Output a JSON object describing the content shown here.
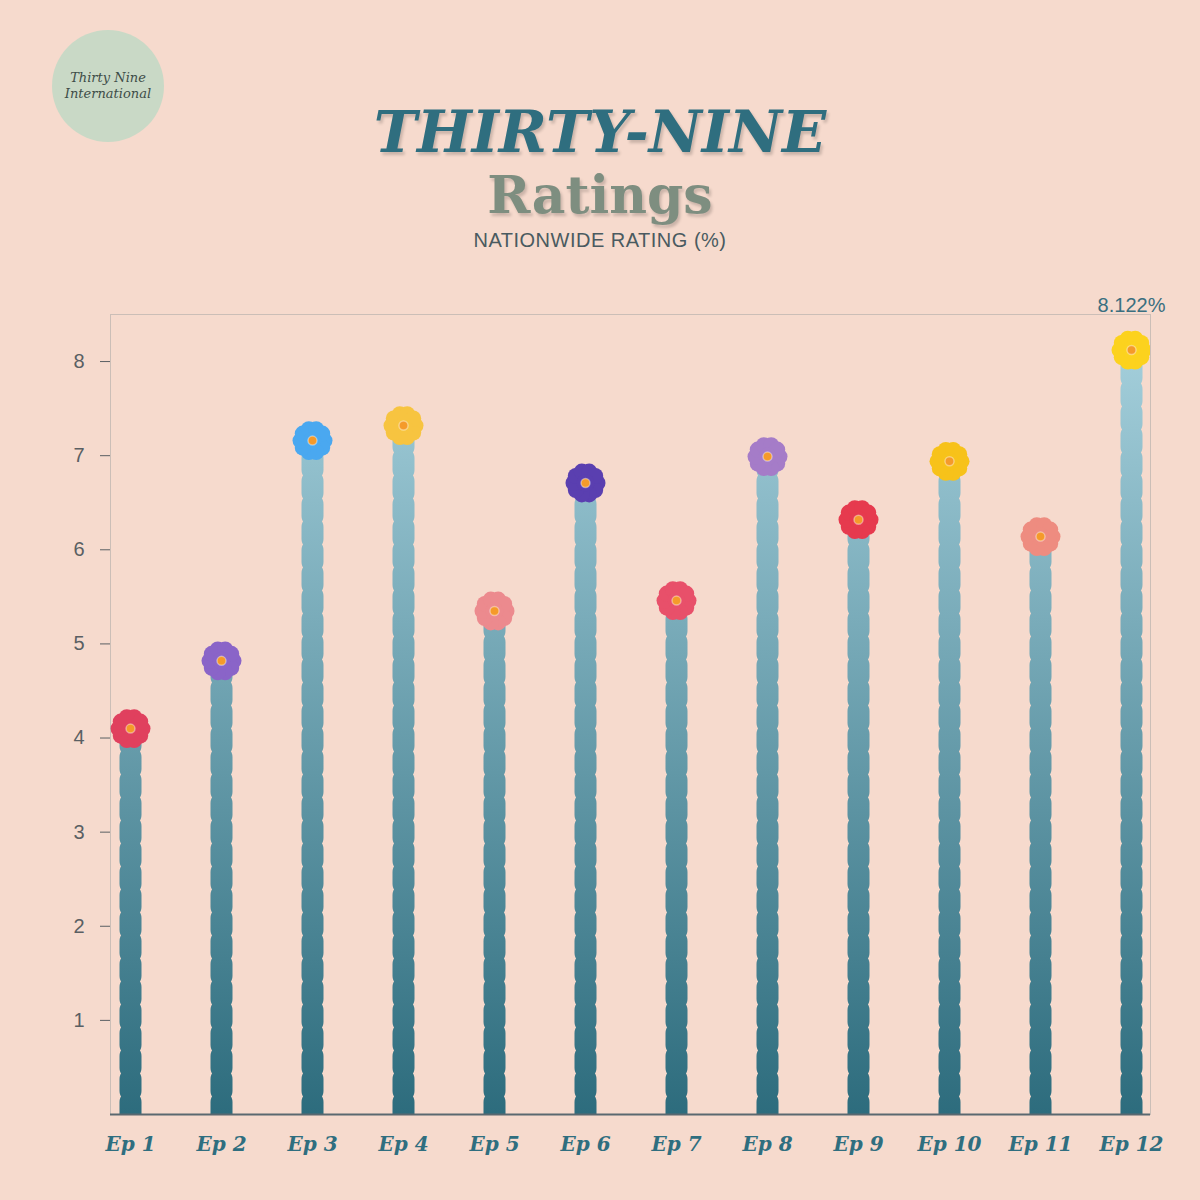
{
  "logo_text": "Thirty Nine International",
  "chart_data": {
    "type": "bar",
    "title": "THIRTY-NINE",
    "subtitle": "Ratings",
    "ylabel": "NATIONWIDE RATING (%)",
    "categories": [
      "Ep 1",
      "Ep 2",
      "Ep 3",
      "Ep 4",
      "Ep 5",
      "Ep 6",
      "Ep 7",
      "Ep 8",
      "Ep 9",
      "Ep 10",
      "Ep 11",
      "Ep 12"
    ],
    "values": [
      4.1,
      4.82,
      7.16,
      7.32,
      5.35,
      6.71,
      5.46,
      6.99,
      6.32,
      6.94,
      6.14,
      8.122
    ],
    "colors": [
      "#e0405e",
      "#8a64c8",
      "#4aa8f0",
      "#f7c440",
      "#ec8a8e",
      "#5a3fb0",
      "#e8506a",
      "#a57cc8",
      "#e63a4e",
      "#f7c21a",
      "#ee8c80",
      "#fcd21e"
    ],
    "ylim": [
      0,
      8.5
    ],
    "yticks": [
      1,
      2,
      3,
      4,
      5,
      6,
      7,
      8
    ],
    "annotations": [
      {
        "x": "Ep 12",
        "y": 8.122,
        "text": "8.122%"
      }
    ]
  }
}
